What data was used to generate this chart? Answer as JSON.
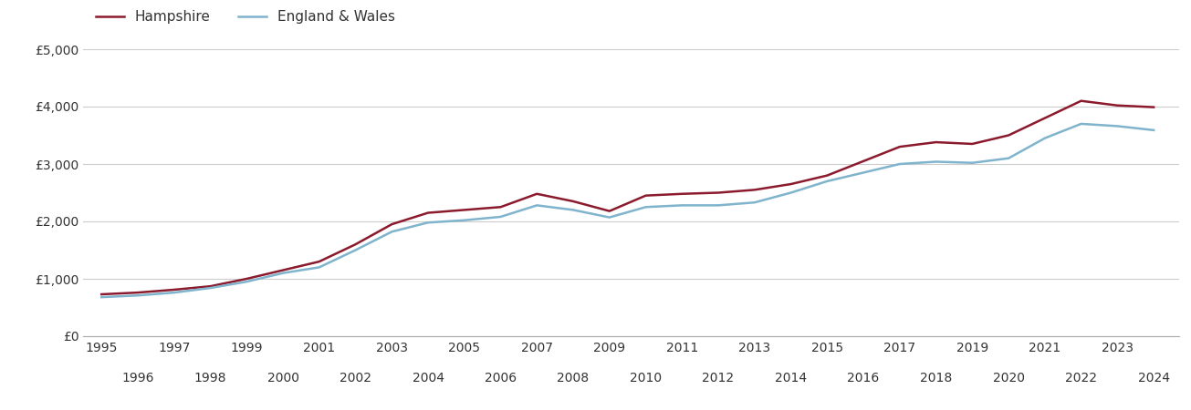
{
  "years": [
    1995,
    1996,
    1997,
    1998,
    1999,
    2000,
    2001,
    2002,
    2003,
    2004,
    2005,
    2006,
    2007,
    2008,
    2009,
    2010,
    2011,
    2012,
    2013,
    2014,
    2015,
    2016,
    2017,
    2018,
    2019,
    2020,
    2021,
    2022,
    2023,
    2024
  ],
  "hampshire": [
    730,
    760,
    810,
    870,
    1000,
    1150,
    1300,
    1600,
    1950,
    2150,
    2200,
    2250,
    2480,
    2350,
    2180,
    2450,
    2480,
    2500,
    2550,
    2650,
    2800,
    3050,
    3300,
    3380,
    3350,
    3500,
    3800,
    4100,
    4020,
    3990
  ],
  "england_wales": [
    680,
    710,
    760,
    840,
    950,
    1100,
    1200,
    1500,
    1820,
    1980,
    2020,
    2080,
    2280,
    2200,
    2070,
    2250,
    2280,
    2280,
    2330,
    2500,
    2700,
    2850,
    3000,
    3040,
    3020,
    3100,
    3450,
    3700,
    3660,
    3590
  ],
  "hampshire_color": "#8B1A2D",
  "england_wales_color": "#7FB4CC",
  "hampshire_label": "Hampshire",
  "england_wales_label": "England & Wales",
  "ylim": [
    0,
    5000
  ],
  "yticks": [
    0,
    1000,
    2000,
    3000,
    4000,
    5000
  ],
  "ytick_labels": [
    "£0",
    "£1,000",
    "£2,000",
    "£3,000",
    "£4,000",
    "£5,000"
  ],
  "background_color": "#ffffff",
  "grid_color": "#cccccc",
  "line_width": 1.8,
  "legend_fontsize": 11,
  "tick_fontsize": 10,
  "xlim": [
    1994.5,
    2024.7
  ]
}
